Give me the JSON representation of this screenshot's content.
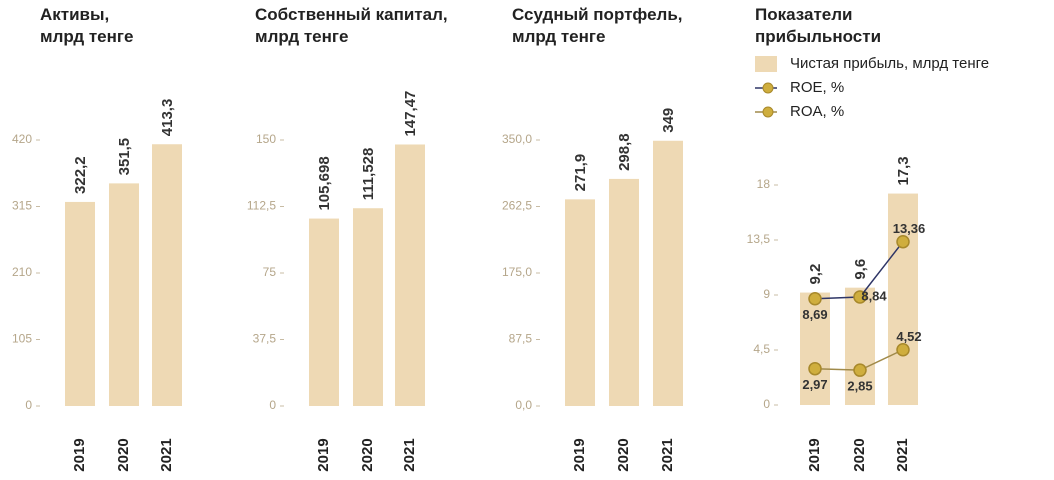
{
  "chart_data": [
    {
      "type": "bar",
      "title": "Активы, млрд тенге",
      "categories": [
        "2019",
        "2020",
        "2021"
      ],
      "values": [
        322.2,
        351.5,
        413.3
      ],
      "value_labels": [
        "322,2",
        "351,5",
        "413,3"
      ],
      "color": "#eed9b4",
      "ylim": [
        0,
        420
      ],
      "yticks": [
        0,
        105,
        210,
        315,
        420
      ]
    },
    {
      "type": "bar",
      "title": "Собственный капитал, млрд тенге",
      "categories": [
        "2019",
        "2020",
        "2021"
      ],
      "values": [
        105.698,
        111.528,
        147.47
      ],
      "value_labels": [
        "105,698",
        "111,528",
        "147,47"
      ],
      "color": "#eed9b4",
      "ylim": [
        0,
        150
      ],
      "yticks": [
        0,
        {
          "value": 37.5,
          "label": "37,5"
        },
        75,
        {
          "value": 112.5,
          "label": "112,5"
        },
        150
      ]
    },
    {
      "type": "bar",
      "title": "Ссудный портфель, млрд тенге",
      "categories": [
        "2019",
        "2020",
        "2021"
      ],
      "values": [
        271.9,
        298.8,
        349
      ],
      "value_labels": [
        "271,9",
        "298,8",
        "349"
      ],
      "color": "#eed9b4",
      "ylim": [
        0,
        350
      ],
      "yticks": [
        {
          "value": 0,
          "label": "0,0"
        },
        {
          "value": 87.5,
          "label": "87,5"
        },
        {
          "value": 175,
          "label": "175,0"
        },
        {
          "value": 262.5,
          "label": "262,5"
        },
        {
          "value": 350,
          "label": "350,0"
        }
      ]
    },
    {
      "type": "combo",
      "title": "Показатели прибыльности",
      "categories": [
        "2019",
        "2020",
        "2021"
      ],
      "ylim": [
        0,
        18
      ],
      "yticks": [
        0,
        {
          "value": 4.5,
          "label": "4,5"
        },
        9,
        {
          "value": 13.5,
          "label": "13,5"
        },
        18
      ],
      "series": [
        {
          "name": "Чистая прибыль, млрд тенге",
          "type": "bar",
          "color": "#eed9b4",
          "values": [
            9.2,
            9.6,
            17.3
          ],
          "value_labels": [
            "9,2",
            "9,6",
            "17,3"
          ]
        },
        {
          "name": "ROE, %",
          "type": "line",
          "color": "#2e3566",
          "marker_color": "#cfae3e",
          "values": [
            8.69,
            8.84,
            13.36
          ],
          "value_labels": [
            "8,69",
            "8,84",
            "13,36"
          ]
        },
        {
          "name": "ROA, %",
          "type": "line",
          "color": "#a08a4a",
          "marker_color": "#cfae3e",
          "values": [
            2.97,
            2.85,
            4.52
          ],
          "value_labels": [
            "2,97",
            "2,85",
            "4,52"
          ]
        }
      ]
    }
  ]
}
